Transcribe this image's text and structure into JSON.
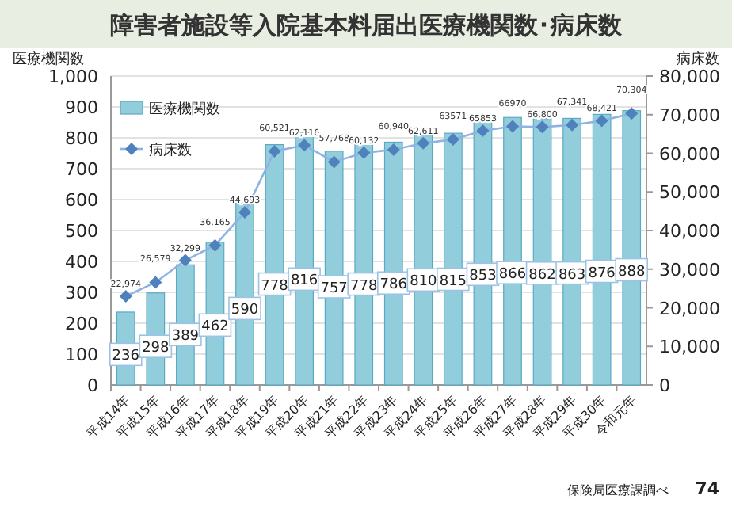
{
  "chart_data": {
    "type": "bar",
    "title": "障害者施設等入院基本料届出医療機関数･病床数",
    "ylabel": "医療機関数",
    "y2label": "病床数",
    "categories": [
      "平成14年",
      "平成15年",
      "平成16年",
      "平成17年",
      "平成18年",
      "平成19年",
      "平成20年",
      "平成21年",
      "平成22年",
      "平成23年",
      "平成24年",
      "平成25年",
      "平成26年",
      "平成27年",
      "平成28年",
      "平成29年",
      "平成30年",
      "令和元年"
    ],
    "series": [
      {
        "name": "医療機関数",
        "color": "#92cddc",
        "values": [
          236,
          298,
          389,
          462,
          590,
          778,
          816,
          757,
          778,
          786,
          810,
          815,
          853,
          866,
          862,
          863,
          876,
          888
        ],
        "value_labels": [
          "236",
          "298",
          "389",
          "462",
          "590",
          "778",
          "816",
          "757",
          "778",
          "786",
          "810",
          "815",
          "853",
          "866",
          "862",
          "863",
          "876",
          "888"
        ]
      },
      {
        "name": "病床数",
        "type": "line",
        "axis": "y2",
        "color": "#4f81bd",
        "marker": "diamond",
        "values": [
          22974,
          26579,
          32299,
          36165,
          44693,
          60521,
          62116,
          57768,
          60132,
          60940,
          62611,
          63571,
          65853,
          66970,
          66800,
          67341,
          68421,
          70304
        ],
        "value_labels": [
          "22,974",
          "26,579",
          "32,299",
          "36,165",
          "44,693",
          "60,521",
          "62,116",
          "57,768",
          "60,132",
          "60,940",
          "62,611",
          "63571",
          "65853",
          "66970",
          "66,800",
          "67,341",
          "68,421",
          "70,304"
        ]
      }
    ],
    "ylim": [
      0,
      1000
    ],
    "yticks": [
      0,
      {
        "value": 100,
        "label": "100"
      },
      {
        "value": 200,
        "label": "200"
      },
      {
        "value": 300,
        "label": "300"
      },
      {
        "value": 400,
        "label": "400"
      },
      {
        "value": 500,
        "label": "500"
      },
      {
        "value": 600,
        "label": "600"
      },
      {
        "value": 700,
        "label": "700"
      },
      {
        "value": 800,
        "label": "800"
      },
      {
        "value": 900,
        "label": "900"
      },
      {
        "value": 1000,
        "label": "1,000"
      }
    ],
    "y2lim": [
      0,
      80000
    ],
    "y2ticks": [
      0,
      {
        "value": 10000,
        "label": "10,000"
      },
      {
        "value": 20000,
        "label": "20,000"
      },
      {
        "value": 30000,
        "label": "30,000"
      },
      {
        "value": 40000,
        "label": "40,000"
      },
      {
        "value": 50000,
        "label": "50,000"
      },
      {
        "value": 60000,
        "label": "60,000"
      },
      {
        "value": 70000,
        "label": "70,000"
      },
      {
        "value": 80000,
        "label": "80,000"
      }
    ],
    "grid": "y",
    "legend": "top left",
    "annotations": [
      "保険局医療課調べ",
      "74"
    ]
  }
}
